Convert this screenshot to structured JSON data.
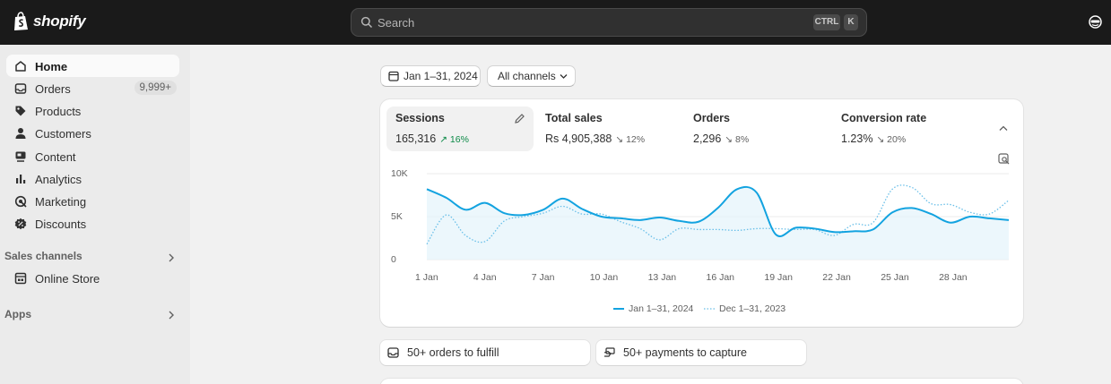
{
  "app": {
    "brand": "shopify"
  },
  "search": {
    "placeholder": "Search",
    "shortcut_ctrl": "CTRL",
    "shortcut_key": "K"
  },
  "sidebar": {
    "items": [
      {
        "label": "Home",
        "icon": "home-icon",
        "active": true
      },
      {
        "label": "Orders",
        "icon": "orders-icon",
        "badge": "9,999+"
      },
      {
        "label": "Products",
        "icon": "tag-icon"
      },
      {
        "label": "Customers",
        "icon": "person-icon"
      },
      {
        "label": "Content",
        "icon": "content-icon"
      },
      {
        "label": "Analytics",
        "icon": "bar-chart-icon"
      },
      {
        "label": "Marketing",
        "icon": "target-icon"
      },
      {
        "label": "Discounts",
        "icon": "discount-icon"
      }
    ],
    "sales_channels_label": "Sales channels",
    "online_store_label": "Online Store",
    "apps_label": "Apps"
  },
  "filters": {
    "date_range": "Jan 1–31, 2024",
    "channels": "All channels"
  },
  "metrics": [
    {
      "label": "Sessions",
      "value": "165,316",
      "change": "16%",
      "direction": "up"
    },
    {
      "label": "Total sales",
      "value": "Rs 4,905,388",
      "change": "12%",
      "direction": "down"
    },
    {
      "label": "Orders",
      "value": "2,296",
      "change": "8%",
      "direction": "down"
    },
    {
      "label": "Conversion rate",
      "value": "1.23%",
      "change": "20%",
      "direction": "down"
    }
  ],
  "chart_data": {
    "type": "line",
    "y_ticks": [
      "10K",
      "5K",
      "0"
    ],
    "ylim": [
      0,
      10000
    ],
    "x_ticks": [
      "1 Jan",
      "4 Jan",
      "7 Jan",
      "10 Jan",
      "13 Jan",
      "16 Jan",
      "19 Jan",
      "22 Jan",
      "25 Jan",
      "28 Jan"
    ],
    "x": [
      1,
      2,
      3,
      4,
      5,
      6,
      7,
      8,
      9,
      10,
      11,
      12,
      13,
      14,
      15,
      16,
      17,
      18,
      19,
      20,
      21,
      22,
      23,
      24,
      25,
      26,
      27,
      28,
      29,
      30,
      31
    ],
    "series": [
      {
        "name": "Jan 1–31, 2024",
        "color": "#13a3e0",
        "style": "solid",
        "values": [
          8200,
          7200,
          5800,
          6600,
          5400,
          5200,
          5800,
          7100,
          5900,
          5000,
          4800,
          4600,
          4900,
          4500,
          4400,
          6000,
          8200,
          7800,
          2900,
          3700,
          3600,
          3200,
          3300,
          3500,
          5500,
          6000,
          5300,
          4300,
          5000,
          4800,
          4600
        ]
      },
      {
        "name": "Dec 1–31, 2023",
        "color": "#69bfe8",
        "style": "dotted",
        "values": [
          1800,
          5200,
          2800,
          2100,
          4500,
          5000,
          5400,
          6200,
          5300,
          5300,
          4400,
          3600,
          2300,
          3600,
          3500,
          3500,
          3400,
          3600,
          3600,
          3500,
          3500,
          2800,
          4100,
          4300,
          8200,
          8400,
          6500,
          6400,
          5500,
          5300,
          6900
        ]
      }
    ]
  },
  "tasks": [
    {
      "label": "50+ orders to fulfill",
      "icon": "inbox-icon"
    },
    {
      "label": "50+ payments to capture",
      "icon": "payment-icon"
    }
  ]
}
